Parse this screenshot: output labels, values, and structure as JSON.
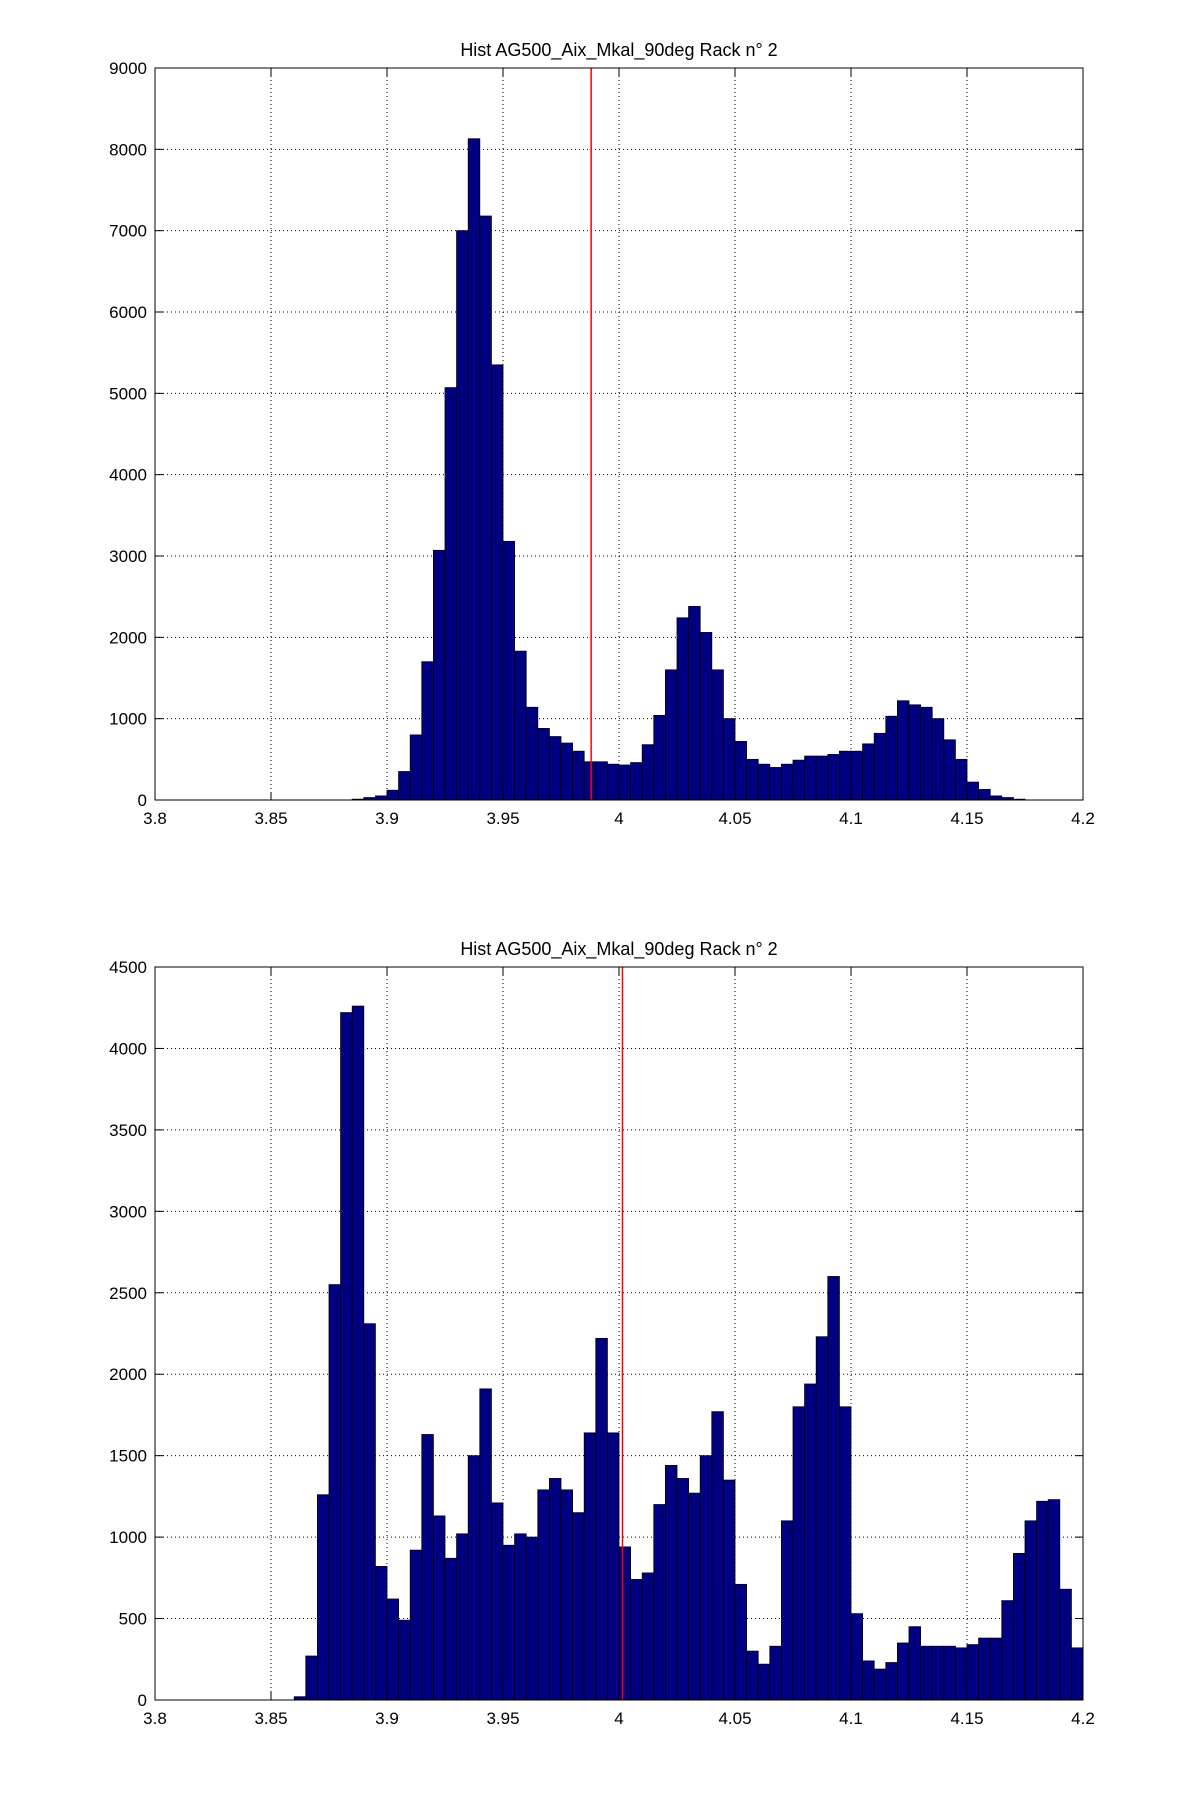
{
  "chart_data": [
    {
      "type": "bar",
      "title": "Hist AG500_Aix_Mkal_90deg Rack n° 2",
      "xlabel": "",
      "ylabel": "",
      "xlim": [
        3.8,
        4.2
      ],
      "ylim": [
        0,
        9000
      ],
      "xticks": [
        "3.8",
        "3.85",
        "3.9",
        "3.95",
        "4",
        "4.05",
        "4.1",
        "4.15",
        "4.2"
      ],
      "yticks": [
        "0",
        "1000",
        "2000",
        "3000",
        "4000",
        "5000",
        "6000",
        "7000",
        "8000",
        "9000"
      ],
      "grid": true,
      "bar_color": "#000080",
      "vline": {
        "x": 3.988,
        "color": "#ff0000"
      },
      "bins": {
        "start": 3.88,
        "width": 0.005
      },
      "values": [
        0,
        10,
        30,
        50,
        120,
        350,
        800,
        1700,
        3070,
        5070,
        7000,
        8130,
        7180,
        5350,
        3180,
        1830,
        1140,
        880,
        780,
        700,
        600,
        470,
        470,
        440,
        430,
        460,
        680,
        1040,
        1600,
        2240,
        2380,
        2060,
        1600,
        1000,
        720,
        500,
        440,
        400,
        440,
        490,
        540,
        540,
        560,
        600,
        600,
        690,
        820,
        1030,
        1220,
        1170,
        1140,
        1000,
        740,
        500,
        220,
        130,
        50,
        30,
        10,
        0
      ]
    },
    {
      "type": "bar",
      "title": "Hist AG500_Aix_Mkal_90deg Rack n° 2",
      "xlabel": "",
      "ylabel": "",
      "xlim": [
        3.8,
        4.2
      ],
      "ylim": [
        0,
        4500
      ],
      "xticks": [
        "3.8",
        "3.85",
        "3.9",
        "3.95",
        "4",
        "4.05",
        "4.1",
        "4.15",
        "4.2"
      ],
      "yticks": [
        "0",
        "500",
        "1000",
        "1500",
        "2000",
        "2500",
        "3000",
        "3500",
        "4000",
        "4500"
      ],
      "grid": true,
      "bar_color": "#000080",
      "vline": {
        "x": 4.0015,
        "color": "#ff0000"
      },
      "bins": {
        "start": 3.85,
        "width": 0.005
      },
      "values": [
        0,
        0,
        20,
        270,
        1260,
        2550,
        4220,
        4260,
        2310,
        820,
        620,
        490,
        920,
        1630,
        1130,
        870,
        1020,
        1500,
        1910,
        1210,
        950,
        1020,
        1000,
        1290,
        1360,
        1290,
        1150,
        1640,
        2220,
        1640,
        940,
        740,
        780,
        1200,
        1440,
        1360,
        1270,
        1500,
        1770,
        1350,
        710,
        300,
        220,
        330,
        1100,
        1800,
        1940,
        2230,
        2600,
        1800,
        530,
        240,
        190,
        230,
        350,
        450,
        330,
        330,
        330,
        320,
        340,
        380,
        380,
        610,
        900,
        1100,
        1220,
        1230,
        680,
        320
      ]
    }
  ]
}
